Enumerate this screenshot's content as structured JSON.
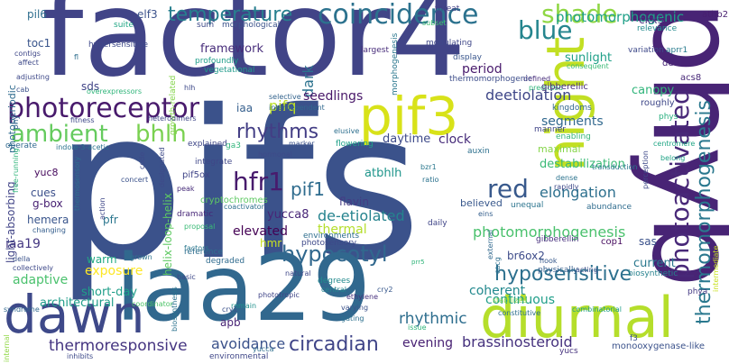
{
  "words": [
    {
      "text": "pifs",
      "color": "#3b528b"
    },
    {
      "text": "factor4",
      "color": "#414487"
    },
    {
      "text": "iaa29",
      "color": "#31688e"
    },
    {
      "text": "phyb",
      "color": "#482475"
    },
    {
      "text": "night",
      "color": "#c2df23"
    },
    {
      "text": "diurnal",
      "color": "#b5de2b"
    },
    {
      "text": "dawn",
      "color": "#3e4989"
    },
    {
      "text": "pif3",
      "color": "#d8e219"
    },
    {
      "text": "photoreceptor",
      "color": "#481a6c"
    },
    {
      "text": "coincidence",
      "color": "#2c728e"
    },
    {
      "text": "blue",
      "color": "#25858e"
    },
    {
      "text": "shade",
      "color": "#8fd744"
    },
    {
      "text": "photoactivated",
      "color": "#482878"
    },
    {
      "text": "thermomorphogenesis",
      "color": "#2a788e"
    },
    {
      "text": "ambient",
      "color": "#65cb5e"
    },
    {
      "text": "bhlh",
      "color": "#7ad151"
    },
    {
      "text": "temperature",
      "color": "#277f8e"
    },
    {
      "text": "red",
      "color": "#38598c"
    },
    {
      "text": "hfr1",
      "color": "#481b6d"
    },
    {
      "text": "hypocotyl",
      "color": "#31688e"
    },
    {
      "text": "circadian",
      "color": "#404588"
    },
    {
      "text": "rhythms",
      "color": "#433e85"
    },
    {
      "text": "pif1",
      "color": "#2f6c8e"
    },
    {
      "text": "hyposensitive",
      "color": "#2d708e"
    },
    {
      "text": "photomorphogenic",
      "color": "#1fa088"
    },
    {
      "text": "deetiolation",
      "color": "#3f4788"
    },
    {
      "text": "dark",
      "color": "#2c728e"
    },
    {
      "text": "pifq",
      "color": "#bddf26"
    },
    {
      "text": "de-etiolated",
      "color": "#25838e"
    },
    {
      "text": "thermoresponsive",
      "color": "#453581"
    },
    {
      "text": "rhythmic",
      "color": "#2e6e8e"
    },
    {
      "text": "brassinosteroid",
      "color": "#46327e"
    },
    {
      "text": "evening",
      "color": "#482173"
    },
    {
      "text": "avoidance",
      "color": "#3b528b"
    },
    {
      "text": "elongation",
      "color": "#2d708e"
    },
    {
      "text": "photomorphogenesis",
      "color": "#4ac16d"
    },
    {
      "text": "continuous",
      "color": "#1f9e89"
    },
    {
      "text": "coherent",
      "color": "#23898e"
    },
    {
      "text": "adaptive",
      "color": "#4ac16d"
    },
    {
      "text": "exposure",
      "color": "#fde725"
    },
    {
      "text": "elevated",
      "color": "#440154"
    },
    {
      "text": "thermal",
      "color": "#b5de2b"
    },
    {
      "text": "current",
      "color": "#2a788e"
    },
    {
      "text": "canopy",
      "color": "#31b57b"
    },
    {
      "text": "destabilization",
      "color": "#3aba76"
    },
    {
      "text": "clock",
      "color": "#472c7a"
    },
    {
      "text": "daytime",
      "color": "#3e4a89"
    },
    {
      "text": "seedlings",
      "color": "#481769"
    },
    {
      "text": "framework",
      "color": "#472c7a"
    },
    {
      "text": "period",
      "color": "#481a6c"
    },
    {
      "text": "sunlight",
      "color": "#1fa088"
    },
    {
      "text": "segments",
      "color": "#31688e"
    },
    {
      "text": "architectural",
      "color": "#1e9c89"
    },
    {
      "text": "short-day",
      "color": "#1f9e89"
    },
    {
      "text": "warm",
      "color": "#22a884"
    },
    {
      "text": "helix-loop-helix",
      "color": "#5ec962"
    },
    {
      "text": "yucca8",
      "color": "#482677"
    },
    {
      "text": "flavin",
      "color": "#443b84"
    },
    {
      "text": "atbhlh",
      "color": "#1f958b"
    },
    {
      "text": "iaa19",
      "color": "#453882"
    },
    {
      "text": "pfr",
      "color": "#2a768e"
    },
    {
      "text": "hemera",
      "color": "#39558c"
    },
    {
      "text": "cues",
      "color": "#3c508b"
    },
    {
      "text": "g-box",
      "color": "#482173"
    },
    {
      "text": "light-absorbing",
      "color": "#414487"
    },
    {
      "text": "yuc8",
      "color": "#460a5d"
    },
    {
      "text": "sds",
      "color": "#414487"
    },
    {
      "text": "iaa",
      "color": "#355f8d"
    },
    {
      "text": "toc1",
      "color": "#39558c"
    },
    {
      "text": "pil6",
      "color": "#2e6e8e"
    },
    {
      "text": "elf3",
      "color": "#3b528b"
    },
    {
      "text": "ckx5",
      "color": "#453781"
    },
    {
      "text": "maximal",
      "color": "#86d549"
    },
    {
      "text": "believed",
      "color": "#38588c"
    },
    {
      "text": "br6ox2",
      "color": "#3e4c8a"
    },
    {
      "text": "sas",
      "color": "#3b528b"
    },
    {
      "text": "hmr",
      "color": "#cae11f"
    },
    {
      "text": "apb",
      "color": "#482475"
    },
    {
      "text": "photoperiodic",
      "color": "#2f6b8e"
    },
    {
      "text": "athb2",
      "color": "#481f70"
    },
    {
      "text": "relevance",
      "color": "#238a8d"
    },
    {
      "text": "threat",
      "color": "#424086"
    },
    {
      "text": "subset",
      "color": "#42be71"
    },
    {
      "text": "suite",
      "color": "#21a685"
    },
    {
      "text": "sum",
      "color": "#3e4a89"
    },
    {
      "text": "morphological",
      "color": "#3b528b"
    },
    {
      "text": "growth-related",
      "color": "#84d44b"
    },
    {
      "text": "hypersensitive",
      "color": "#3e4989"
    },
    {
      "text": "profoundly",
      "color": "#1f9e89"
    },
    {
      "text": "vegetational",
      "color": "#1f9a8a"
    },
    {
      "text": "elusive",
      "color": "#2e6f8e"
    },
    {
      "text": "modulating",
      "color": "#3f4788"
    },
    {
      "text": "largest",
      "color": "#472c7a"
    },
    {
      "text": "display",
      "color": "#39558c"
    },
    {
      "text": "morphogenesis",
      "color": "#2a778e"
    },
    {
      "text": "variation",
      "color": "#3e4989"
    },
    {
      "text": "aprr1",
      "color": "#287c8e"
    },
    {
      "text": "consequent",
      "color": "#3aba76"
    },
    {
      "text": "det1",
      "color": "#482677"
    },
    {
      "text": "acs8",
      "color": "#482878"
    },
    {
      "text": "defined",
      "color": "#472d7b"
    },
    {
      "text": "predicted",
      "color": "#31b57b"
    },
    {
      "text": "thermomorphogenic",
      "color": "#3d4d8a"
    },
    {
      "text": "gibberellic",
      "color": "#472d7b"
    },
    {
      "text": "roughly",
      "color": "#3f4889"
    },
    {
      "text": "phys",
      "color": "#29af7f"
    },
    {
      "text": "kingdoms",
      "color": "#31688e"
    },
    {
      "text": "manner",
      "color": "#404588"
    },
    {
      "text": "enabling",
      "color": "#34b679"
    },
    {
      "text": "centromere",
      "color": "#21a685"
    },
    {
      "text": "belong",
      "color": "#20a386"
    },
    {
      "text": "transduction",
      "color": "#2a768e"
    },
    {
      "text": "perception",
      "color": "#3e4989"
    },
    {
      "text": "dense",
      "color": "#2c738e"
    },
    {
      "text": "rapidly",
      "color": "#3e4989"
    },
    {
      "text": "unequal",
      "color": "#2b748e"
    },
    {
      "text": "abundance",
      "color": "#2f6c8e"
    },
    {
      "text": "eins",
      "color": "#355f8d"
    },
    {
      "text": "gibberellin",
      "color": "#472f7d"
    },
    {
      "text": "cop1",
      "color": "#460b5e"
    },
    {
      "text": "hook",
      "color": "#38598c"
    },
    {
      "text": "physically",
      "color": "#355e8d"
    },
    {
      "text": "acting",
      "color": "#3b528b"
    },
    {
      "text": "biosynthetic",
      "color": "#26828e"
    },
    {
      "text": "phya",
      "color": "#443983"
    },
    {
      "text": "intermediate",
      "color": "#c8e020"
    },
    {
      "text": "monooxygenase-like",
      "color": "#3b528b"
    },
    {
      "text": "combinatorial",
      "color": "#1f9e89"
    },
    {
      "text": "constitutive",
      "color": "#2e6f8e"
    },
    {
      "text": "yucs",
      "color": "#46327e"
    },
    {
      "text": "f3",
      "color": "#3b528b"
    },
    {
      "text": "stabilized",
      "color": "#84d44b"
    },
    {
      "text": "external",
      "color": "#31688e"
    },
    {
      "text": "cacg",
      "color": "#2d708e"
    },
    {
      "text": "issue",
      "color": "#31b57b"
    },
    {
      "text": "cry2",
      "color": "#38588c"
    },
    {
      "text": "gating",
      "color": "#2d708e"
    },
    {
      "text": "varying",
      "color": "#3b528b"
    },
    {
      "text": "ethylene",
      "color": "#46307e"
    },
    {
      "text": "central",
      "color": "#25858e"
    },
    {
      "text": "degrees",
      "color": "#238a8d"
    },
    {
      "text": "prr5",
      "color": "#31b57b"
    },
    {
      "text": "yucca",
      "color": "#2e6e8e"
    },
    {
      "text": "environmental",
      "color": "#3f4788"
    },
    {
      "text": "natural",
      "color": "#3f4788"
    },
    {
      "text": "phototropic",
      "color": "#404688"
    },
    {
      "text": "remain",
      "color": "#21918c"
    },
    {
      "text": "cry1",
      "color": "#3b528b"
    },
    {
      "text": "coordinator",
      "color": "#4fc46a"
    },
    {
      "text": "biosynthesis",
      "color": "#2c738e"
    },
    {
      "text": "basic",
      "color": "#3e4989"
    },
    {
      "text": "factors",
      "color": "#2a788e"
    },
    {
      "text": "degraded",
      "color": "#2f6b8e"
    },
    {
      "text": "reference",
      "color": "#2e6e8e"
    },
    {
      "text": "grown",
      "color": "#2c738e"
    },
    {
      "text": "inhibits",
      "color": "#3e4a89"
    },
    {
      "text": "syndrome",
      "color": "#31688e"
    },
    {
      "text": "internal",
      "color": "#8fd744"
    },
    {
      "text": "collectively",
      "color": "#3e4989"
    },
    {
      "text": "della",
      "color": "#3b528b"
    },
    {
      "text": "changing",
      "color": "#355e8d"
    },
    {
      "text": "cryptochromes",
      "color": "#5ec962"
    },
    {
      "text": "coactivator",
      "color": "#2d708e"
    },
    {
      "text": "proposal",
      "color": "#3aba76"
    },
    {
      "text": "dramatic",
      "color": "#482878"
    },
    {
      "text": "action",
      "color": "#3f4788"
    },
    {
      "text": "concert",
      "color": "#3b528b"
    },
    {
      "text": "peak",
      "color": "#472c7a"
    },
    {
      "text": "pif5ox",
      "color": "#404588"
    },
    {
      "text": "integrate",
      "color": "#3f4788"
    },
    {
      "text": "explained",
      "color": "#3f4788"
    },
    {
      "text": "ga3",
      "color": "#31b57b"
    },
    {
      "text": "designated",
      "color": "#3e4a89"
    },
    {
      "text": "code",
      "color": "#3e4a89"
    },
    {
      "text": "hormonal",
      "color": "#3e4a89"
    },
    {
      "text": "environments",
      "color": "#2e6e8e"
    },
    {
      "text": "photosensory",
      "color": "#3e4989"
    },
    {
      "text": "ratio",
      "color": "#2c728e"
    },
    {
      "text": "bzr1",
      "color": "#2a788e"
    },
    {
      "text": "auxin",
      "color": "#2d708e"
    },
    {
      "text": "daily",
      "color": "#404588"
    },
    {
      "text": "marker",
      "color": "#3b528b"
    },
    {
      "text": "flowering",
      "color": "#1fa088"
    },
    {
      "text": "thermosensory",
      "color": "#2e6f8e"
    },
    {
      "text": "indole-3-acetic",
      "color": "#2c728e"
    },
    {
      "text": "operate",
      "color": "#31688e"
    },
    {
      "text": "free-running",
      "color": "#31b57b"
    },
    {
      "text": "fitness",
      "color": "#3e4989"
    },
    {
      "text": "heterodimers",
      "color": "#3f4788"
    },
    {
      "text": "interdependent",
      "color": "#31688e"
    },
    {
      "text": "selective",
      "color": "#33638d"
    },
    {
      "text": "hlh",
      "color": "#3e4989"
    },
    {
      "text": "overexpressors",
      "color": "#31b57b"
    },
    {
      "text": "phy",
      "color": "#33638d"
    },
    {
      "text": "cab",
      "color": "#3b528b"
    },
    {
      "text": "adjusting",
      "color": "#3e4989"
    },
    {
      "text": "contigs",
      "color": "#3f4788"
    },
    {
      "text": "affect",
      "color": "#3e4989"
    },
    {
      "text": "fl",
      "color": "#2e6e8e"
    }
  ]
}
